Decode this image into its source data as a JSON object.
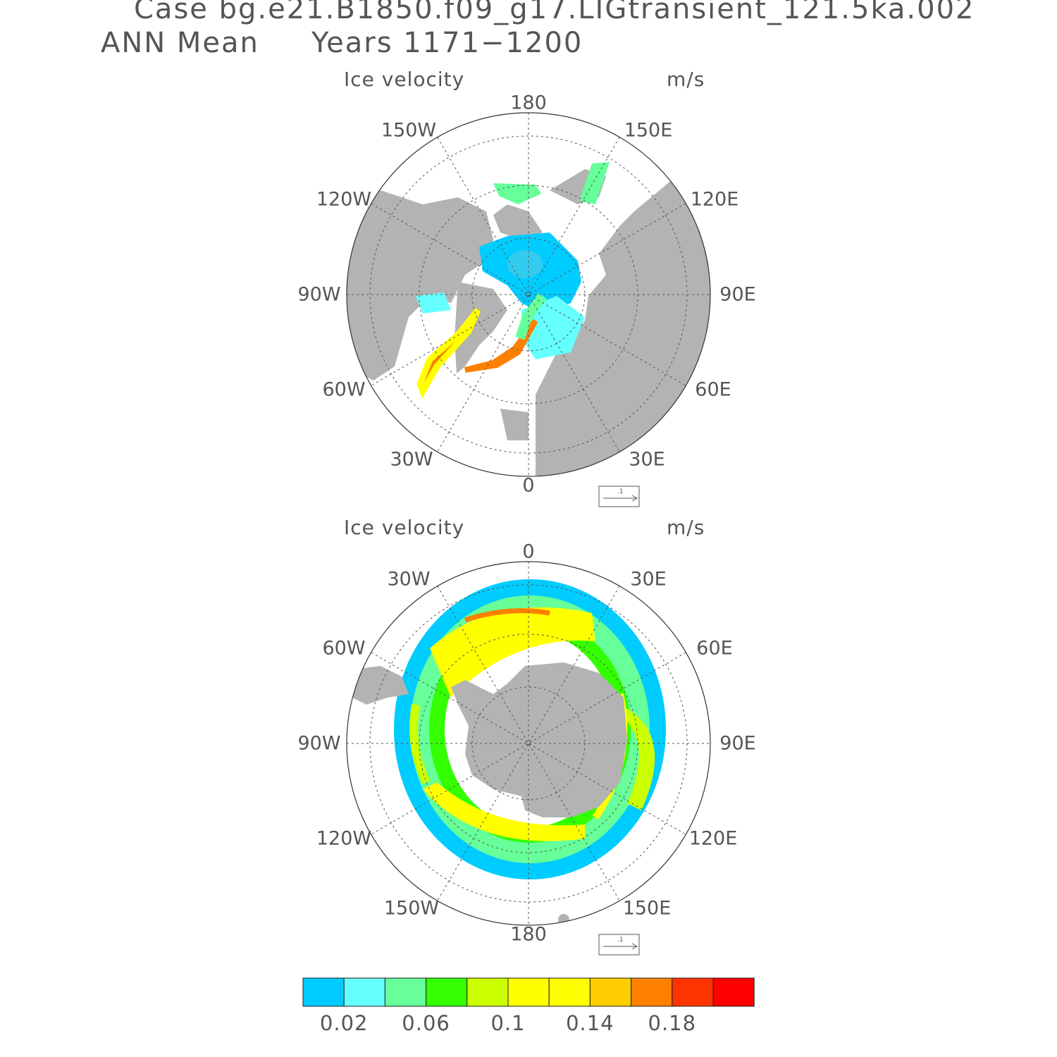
{
  "header": {
    "case_line": "Case bg.e21.B1850.f09_g17.LIGtransient_121.5ka.002",
    "season_label": "ANN Mean",
    "years_label": "Years 1171−1200"
  },
  "panels": [
    {
      "id": "north",
      "title": "Ice velocity",
      "units": "m/s",
      "hemisphere": "northern",
      "longitude_labels": [
        "180",
        "150E",
        "120E",
        "90E",
        "60E",
        "30E",
        "0",
        "30W",
        "60W",
        "90W",
        "120W",
        "150W"
      ],
      "reference_vector_label": ".1"
    },
    {
      "id": "south",
      "title": "Ice velocity",
      "units": "m/s",
      "hemisphere": "southern",
      "longitude_labels": [
        "0",
        "30E",
        "60E",
        "90E",
        "120E",
        "150E",
        "180",
        "150W",
        "120W",
        "90W",
        "60W",
        "30W"
      ],
      "reference_vector_label": ".1"
    }
  ],
  "colorbar": {
    "colors": [
      "#00ccff",
      "#66ffff",
      "#66ff99",
      "#33ff00",
      "#ccff00",
      "#ffff00",
      "#ffff00",
      "#ffcc00",
      "#ff8000",
      "#ff3300",
      "#ff0000"
    ],
    "tick_labels": [
      "0.02",
      "0.06",
      "0.1",
      "0.14",
      "0.18"
    ]
  },
  "colors": {
    "land": "#b3b3b3",
    "text": "#555555"
  }
}
